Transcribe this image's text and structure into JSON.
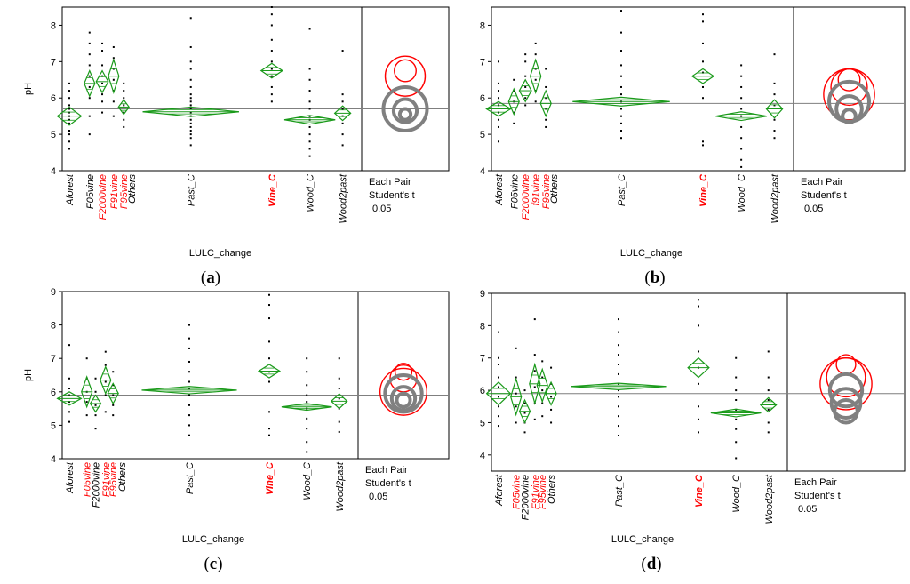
{
  "chart_data": [
    {
      "panel": "(a)",
      "type": "scatter",
      "ylabel": "pH",
      "xlabel": "LULC_change",
      "ylim": [
        4,
        8.5
      ],
      "yticks": [
        4,
        5,
        6,
        7,
        8
      ],
      "ref_line": 5.7,
      "test_label": [
        "Each Pair",
        "Student's t",
        "0.05"
      ],
      "categories": [
        {
          "name": "Aforest",
          "color": "#000000",
          "xpos": 0.0,
          "width": 0.9,
          "mean": 5.5,
          "ci": 0.25,
          "points": [
            4.6,
            4.8,
            5.0,
            5.1,
            5.3,
            5.4,
            5.5,
            5.6,
            5.7,
            5.8,
            6.0,
            6.2,
            6.4
          ]
        },
        {
          "name": "F05vine",
          "color": "#000000",
          "xpos": 0.8,
          "width": 0.4,
          "mean": 6.4,
          "ci": 0.35,
          "points": [
            5.0,
            5.5,
            6.0,
            6.3,
            6.6,
            6.9,
            7.2,
            7.5,
            7.8
          ]
        },
        {
          "name": "F2000vine",
          "color": "#ff0000",
          "xpos": 1.3,
          "width": 0.45,
          "mean": 6.45,
          "ci": 0.3,
          "points": [
            5.6,
            5.9,
            6.1,
            6.4,
            6.6,
            6.9,
            7.3,
            7.5
          ]
        },
        {
          "name": "F91vine",
          "color": "#ff0000",
          "xpos": 1.75,
          "width": 0.35,
          "mean": 6.6,
          "ci": 0.45,
          "points": [
            5.5,
            5.9,
            6.2,
            6.5,
            6.8,
            7.1,
            7.4
          ]
        },
        {
          "name": "F95vine",
          "color": "#ff0000",
          "xpos": 2.15,
          "width": 0.4,
          "mean": 5.75,
          "ci": 0.2,
          "points": [
            5.2,
            5.4,
            5.6,
            5.8,
            6.0,
            6.2,
            6.4
          ]
        },
        {
          "name": "Others",
          "color": "#000000",
          "xpos": 2.45,
          "width": 0.01,
          "mean": null,
          "ci": 0,
          "points": []
        },
        {
          "name": "Past_C",
          "color": "#000000",
          "xpos": 4.8,
          "width": 3.6,
          "mean": 5.62,
          "ci": 0.13,
          "points": [
            4.7,
            4.9,
            5.0,
            5.1,
            5.2,
            5.3,
            5.4,
            5.5,
            5.6,
            5.7,
            5.8,
            5.9,
            6.0,
            6.1,
            6.3,
            6.5,
            6.8,
            7.0,
            7.4,
            8.2
          ]
        },
        {
          "name": "Vine_C",
          "color": "#ff0000",
          "xpos": 8.0,
          "width": 0.8,
          "mean": 6.75,
          "ci": 0.2,
          "points": [
            5.9,
            6.1,
            6.3,
            6.6,
            6.8,
            7.0,
            7.3,
            7.6,
            8.0,
            8.3,
            8.5
          ]
        },
        {
          "name": "Wood_C",
          "color": "#000000",
          "xpos": 9.5,
          "width": 1.9,
          "mean": 5.4,
          "ci": 0.12,
          "points": [
            4.4,
            4.6,
            4.8,
            5.0,
            5.2,
            5.4,
            5.5,
            5.7,
            5.9,
            6.2,
            6.5,
            6.8,
            7.9
          ]
        },
        {
          "name": "Wood2past",
          "color": "#000000",
          "xpos": 10.8,
          "width": 0.6,
          "mean": 5.58,
          "ci": 0.2,
          "points": [
            4.7,
            5.0,
            5.3,
            5.5,
            5.7,
            5.9,
            6.1,
            7.3
          ]
        }
      ],
      "circles": [
        {
          "y": 6.6,
          "r": 0.55,
          "color": "#ff0000"
        },
        {
          "y": 6.75,
          "r": 0.3,
          "color": "#ff0000"
        },
        {
          "y": 5.7,
          "r": 0.6,
          "color": "#808080"
        },
        {
          "y": 5.65,
          "r": 0.32,
          "color": "#808080"
        },
        {
          "y": 5.55,
          "r": 0.15,
          "color": "#808080"
        }
      ]
    },
    {
      "panel": "(b)",
      "type": "scatter",
      "ylabel": "",
      "xlabel": "LULC_change",
      "ylim": [
        4,
        8.5
      ],
      "yticks": [
        4,
        5,
        6,
        7,
        8
      ],
      "ref_line": 5.85,
      "test_label": [
        "Each Pair",
        "Student's t",
        "0.05"
      ],
      "categories": [
        {
          "name": "Aforest",
          "color": "#000000",
          "xpos": 0.0,
          "width": 0.9,
          "mean": 5.7,
          "ci": 0.2,
          "points": [
            4.8,
            5.2,
            5.4,
            5.6,
            5.8,
            6.0,
            6.2,
            6.4,
            7.0
          ]
        },
        {
          "name": "F05vine",
          "color": "#000000",
          "xpos": 0.6,
          "width": 0.35,
          "mean": 5.9,
          "ci": 0.35,
          "points": [
            5.3,
            5.6,
            5.9,
            6.2,
            6.5
          ]
        },
        {
          "name": "F2000vine",
          "color": "#ff0000",
          "xpos": 1.05,
          "width": 0.45,
          "mean": 6.2,
          "ci": 0.3,
          "points": [
            5.8,
            6.0,
            6.3,
            6.6,
            7.0,
            7.2
          ]
        },
        {
          "name": "f91vine",
          "color": "#ff0000",
          "xpos": 1.45,
          "width": 0.4,
          "mean": 6.6,
          "ci": 0.45,
          "points": [
            5.9,
            6.2,
            6.5,
            6.8,
            7.2,
            7.5
          ]
        },
        {
          "name": "F95vine",
          "color": "#ff0000",
          "xpos": 1.85,
          "width": 0.35,
          "mean": 5.85,
          "ci": 0.35,
          "points": [
            5.2,
            5.4,
            5.7,
            6.0,
            6.3,
            6.8
          ]
        },
        {
          "name": "Others",
          "color": "#000000",
          "xpos": 2.15,
          "width": 0.01,
          "mean": null,
          "ci": 0,
          "points": []
        },
        {
          "name": "Past_C",
          "color": "#000000",
          "xpos": 4.8,
          "width": 3.6,
          "mean": 5.9,
          "ci": 0.12,
          "points": [
            4.9,
            5.1,
            5.3,
            5.5,
            5.7,
            5.9,
            6.1,
            6.3,
            6.6,
            6.9,
            7.3,
            7.8,
            8.4
          ]
        },
        {
          "name": "Vine_C",
          "color": "#ff0000",
          "xpos": 8.0,
          "width": 0.8,
          "mean": 6.6,
          "ci": 0.2,
          "points": [
            4.7,
            4.8,
            6.0,
            6.3,
            6.7,
            7.0,
            7.5,
            8.1,
            8.3
          ]
        },
        {
          "name": "Wood_C",
          "color": "#000000",
          "xpos": 9.5,
          "width": 1.9,
          "mean": 5.5,
          "ci": 0.12,
          "points": [
            4.1,
            4.3,
            4.6,
            4.9,
            5.2,
            5.5,
            5.7,
            6.0,
            6.3,
            6.6,
            6.9
          ]
        },
        {
          "name": "Wood2past",
          "color": "#000000",
          "xpos": 10.8,
          "width": 0.6,
          "mean": 5.7,
          "ci": 0.25,
          "points": [
            4.9,
            5.1,
            5.4,
            5.8,
            6.1,
            6.4,
            7.2
          ]
        }
      ],
      "circles": [
        {
          "y": 6.5,
          "r": 0.3,
          "color": "#ff0000"
        },
        {
          "y": 6.3,
          "r": 0.5,
          "color": "#ff0000"
        },
        {
          "y": 6.1,
          "r": 0.7,
          "color": "#ff0000"
        },
        {
          "y": 5.9,
          "r": 0.55,
          "color": "#808080"
        },
        {
          "y": 5.7,
          "r": 0.35,
          "color": "#808080"
        },
        {
          "y": 5.5,
          "r": 0.18,
          "color": "#808080"
        }
      ]
    },
    {
      "panel": "(c)",
      "type": "scatter",
      "ylabel": "pH",
      "xlabel": "LULC_change",
      "ylim": [
        4,
        9
      ],
      "yticks": [
        4,
        5,
        6,
        7,
        8,
        9
      ],
      "ref_line": 5.9,
      "test_label": [
        "Each Pair",
        "Student's t",
        "0.05"
      ],
      "categories": [
        {
          "name": "Aforest",
          "color": "#000000",
          "xpos": 0.0,
          "width": 0.9,
          "mean": 5.8,
          "ci": 0.2,
          "points": [
            5.1,
            5.4,
            5.7,
            5.9,
            6.1,
            6.4,
            7.4
          ]
        },
        {
          "name": "F05vine",
          "color": "#ff0000",
          "xpos": 0.7,
          "width": 0.35,
          "mean": 6.0,
          "ci": 0.45,
          "points": [
            5.3,
            5.7,
            6.0,
            6.4,
            7.0
          ]
        },
        {
          "name": "F2000vine",
          "color": "#000000",
          "xpos": 1.05,
          "width": 0.35,
          "mean": 5.65,
          "ci": 0.25,
          "points": [
            4.9,
            5.3,
            5.6,
            6.0,
            6.4
          ]
        },
        {
          "name": "F91vine",
          "color": "#ff0000",
          "xpos": 1.45,
          "width": 0.35,
          "mean": 6.35,
          "ci": 0.4,
          "points": [
            5.4,
            5.9,
            6.3,
            6.8,
            7.2
          ]
        },
        {
          "name": "F95vine",
          "color": "#ff0000",
          "xpos": 1.75,
          "width": 0.35,
          "mean": 5.95,
          "ci": 0.3,
          "points": [
            5.3,
            5.6,
            5.9,
            6.2,
            6.6
          ]
        },
        {
          "name": "Others",
          "color": "#000000",
          "xpos": 2.1,
          "width": 0.01,
          "mean": null,
          "ci": 0,
          "points": []
        },
        {
          "name": "Past_C",
          "color": "#000000",
          "xpos": 4.8,
          "width": 3.6,
          "mean": 6.05,
          "ci": 0.11,
          "points": [
            4.7,
            5.0,
            5.3,
            5.6,
            5.9,
            6.1,
            6.3,
            6.6,
            6.9,
            7.3,
            7.6,
            8.0
          ]
        },
        {
          "name": "Vine_C",
          "color": "#ff0000",
          "xpos": 8.0,
          "width": 0.8,
          "mean": 6.62,
          "ci": 0.2,
          "points": [
            4.7,
            4.9,
            5.4,
            6.3,
            6.6,
            7.0,
            7.5,
            8.2,
            8.6,
            8.9
          ]
        },
        {
          "name": "Wood_C",
          "color": "#000000",
          "xpos": 9.5,
          "width": 1.9,
          "mean": 5.55,
          "ci": 0.1,
          "points": [
            4.2,
            4.5,
            4.9,
            5.2,
            5.5,
            5.7,
            5.9,
            6.2,
            6.6,
            7.0
          ]
        },
        {
          "name": "Wood2past",
          "color": "#000000",
          "xpos": 10.8,
          "width": 0.6,
          "mean": 5.72,
          "ci": 0.22,
          "points": [
            4.8,
            5.1,
            5.5,
            5.8,
            6.1,
            6.4,
            7.0
          ]
        }
      ],
      "circles": [
        {
          "y": 6.6,
          "r": 0.25,
          "color": "#ff0000"
        },
        {
          "y": 6.4,
          "r": 0.4,
          "color": "#ff0000"
        },
        {
          "y": 6.0,
          "r": 0.7,
          "color": "#ff0000"
        },
        {
          "y": 5.95,
          "r": 0.55,
          "color": "#808080"
        },
        {
          "y": 5.8,
          "r": 0.35,
          "color": "#808080"
        },
        {
          "y": 5.75,
          "r": 0.2,
          "color": "#808080"
        }
      ]
    },
    {
      "panel": "(d)",
      "type": "scatter",
      "ylabel": "",
      "xlabel": "LULC_change",
      "ylim": [
        3.5,
        9
      ],
      "yticks": [
        4,
        5,
        6,
        7,
        8,
        9
      ],
      "ref_line": 5.9,
      "test_label": [
        "Each Pair",
        "Student's t",
        "0.05"
      ],
      "categories": [
        {
          "name": "Aforest",
          "color": "#000000",
          "xpos": 0.0,
          "width": 0.9,
          "mean": 5.9,
          "ci": 0.35,
          "points": [
            4.9,
            5.2,
            5.5,
            5.8,
            6.1,
            6.4,
            6.8,
            7.0,
            7.8
          ]
        },
        {
          "name": "F05vine",
          "color": "#ff0000",
          "xpos": 0.7,
          "width": 0.35,
          "mean": 5.8,
          "ci": 0.55,
          "points": [
            5.0,
            5.5,
            5.9,
            6.4,
            7.3
          ]
        },
        {
          "name": "F2000vine",
          "color": "#000000",
          "xpos": 1.05,
          "width": 0.4,
          "mean": 5.35,
          "ci": 0.35,
          "points": [
            4.7,
            5.0,
            5.3,
            5.6,
            6.0
          ]
        },
        {
          "name": "F91vine",
          "color": "#ff0000",
          "xpos": 1.45,
          "width": 0.35,
          "mean": 6.2,
          "ci": 0.6,
          "points": [
            5.1,
            5.6,
            6.1,
            6.6,
            7.1,
            8.2
          ]
        },
        {
          "name": "F95vine",
          "color": "#ff0000",
          "xpos": 1.75,
          "width": 0.4,
          "mean": 6.15,
          "ci": 0.5,
          "points": [
            5.2,
            5.6,
            6.0,
            6.4,
            6.9
          ]
        },
        {
          "name": "Others",
          "color": "#000000",
          "xpos": 2.1,
          "width": 0.4,
          "mean": 5.9,
          "ci": 0.35,
          "points": [
            5.0,
            5.4,
            5.8,
            6.2,
            6.7
          ]
        },
        {
          "name": "Past_C",
          "color": "#000000",
          "xpos": 4.8,
          "width": 3.6,
          "mean": 6.12,
          "ci": 0.1,
          "points": [
            4.6,
            4.9,
            5.2,
            5.5,
            5.8,
            6.0,
            6.2,
            6.5,
            6.8,
            7.1,
            7.4,
            7.8,
            8.2
          ]
        },
        {
          "name": "Vine_C",
          "color": "#ff0000",
          "xpos": 8.0,
          "width": 0.8,
          "mean": 6.7,
          "ci": 0.3,
          "points": [
            4.7,
            5.1,
            5.5,
            6.2,
            6.7,
            7.2,
            8.0,
            8.6,
            8.8
          ]
        },
        {
          "name": "Wood_C",
          "color": "#000000",
          "xpos": 9.5,
          "width": 1.9,
          "mean": 5.3,
          "ci": 0.12,
          "points": [
            3.9,
            4.4,
            4.8,
            5.1,
            5.4,
            5.7,
            6.0,
            6.4,
            7.0
          ]
        },
        {
          "name": "Wood2past",
          "color": "#000000",
          "xpos": 10.8,
          "width": 0.6,
          "mean": 5.55,
          "ci": 0.22,
          "points": [
            4.7,
            5.0,
            5.4,
            5.7,
            6.0,
            6.4,
            7.2
          ]
        }
      ],
      "circles": [
        {
          "y": 6.8,
          "r": 0.3,
          "color": "#ff0000"
        },
        {
          "y": 6.4,
          "r": 0.6,
          "color": "#ff0000"
        },
        {
          "y": 6.2,
          "r": 0.8,
          "color": "#ff0000"
        },
        {
          "y": 6.0,
          "r": 0.5,
          "color": "#808080"
        },
        {
          "y": 5.6,
          "r": 0.45,
          "color": "#808080"
        },
        {
          "y": 5.35,
          "r": 0.35,
          "color": "#808080"
        }
      ]
    }
  ],
  "colors": {
    "diamond": "#1a9a1a",
    "red_label": "#ff0000",
    "circle_gray": "#808080",
    "ref_line": "#7f7f7f"
  }
}
